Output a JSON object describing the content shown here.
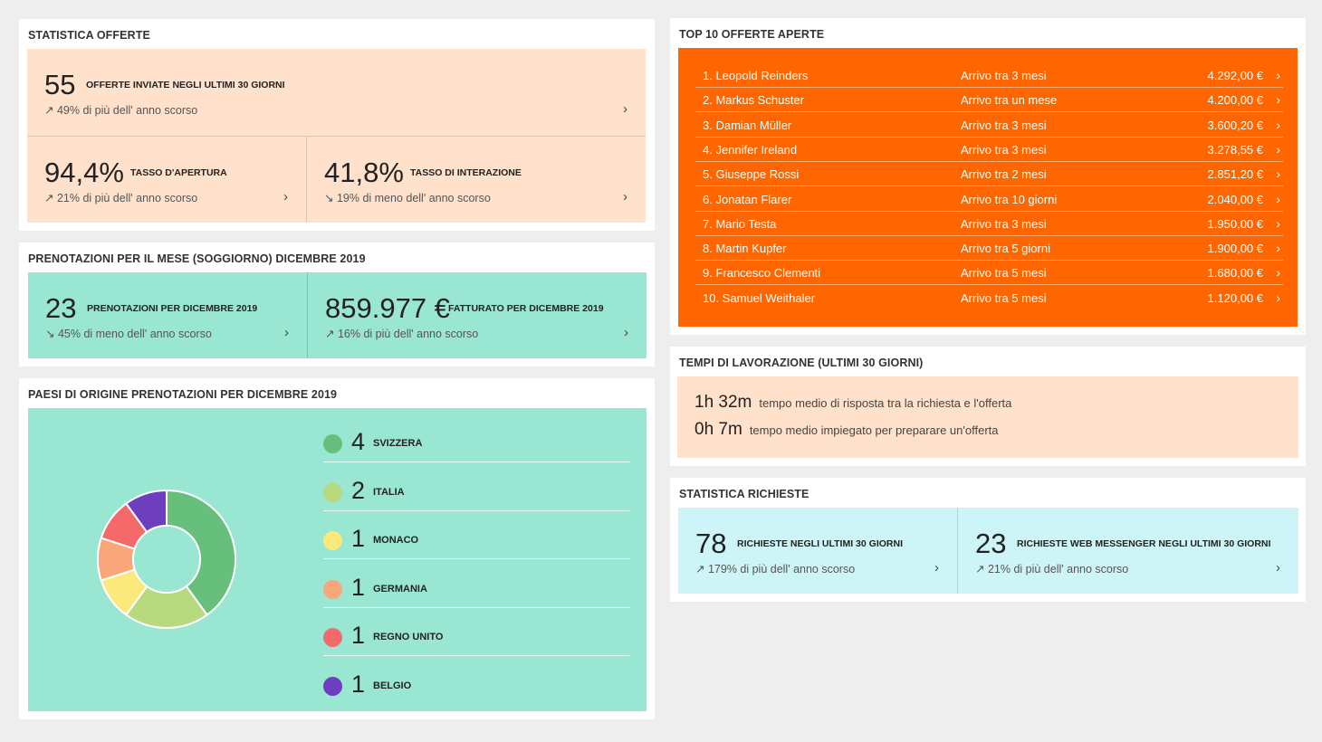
{
  "colors": {
    "peach": "#ffe1cc",
    "mint": "#99e6d3",
    "orange": "#ff6600",
    "lightblue": "#cdf5f7",
    "divider_peach": "#e8c3a8",
    "divider_mint": "#6fc9b4",
    "divider_blue": "#9fdce2"
  },
  "offerte": {
    "title": "STATISTICA OFFERTE",
    "main": {
      "value": "55",
      "label": "OFFERTE INVIATE NEGLI ULTIMI 30 GIORNI",
      "sub": "↗ 49% di più dell' anno scorso"
    },
    "left": {
      "value": "94,4%",
      "label": "TASSO D'APERTURA",
      "sub": "↗ 21% di più dell' anno scorso"
    },
    "right": {
      "value": "41,8%",
      "label": "TASSO DI INTERAZIONE",
      "sub": "↘ 19% di meno dell' anno scorso"
    }
  },
  "prenotazioni": {
    "title": "PRENOTAZIONI PER IL MESE (SOGGIORNO) DICEMBRE 2019",
    "left": {
      "value": "23",
      "label": "PRENOTAZIONI PER DICEMBRE 2019",
      "sub": "↘ 45% di meno dell' anno scorso"
    },
    "right": {
      "value": "859.977 €",
      "label": "FATTURATO PER DICEMBRE 2019",
      "sub": "↗ 16% di più dell' anno scorso"
    }
  },
  "paesi": {
    "title": "PAESI DI ORIGINE PRENOTAZIONI PER DICEMBRE 2019",
    "items": [
      {
        "count": "4",
        "country": "SVIZZERA",
        "color": "#66bf7a"
      },
      {
        "count": "2",
        "country": "ITALIA",
        "color": "#b8d97e"
      },
      {
        "count": "1",
        "country": "MONACO",
        "color": "#fbe97c"
      },
      {
        "count": "1",
        "country": "GERMANIA",
        "color": "#f9a77a"
      },
      {
        "count": "1",
        "country": "REGNO UNITO",
        "color": "#f46a6a"
      },
      {
        "count": "1",
        "country": "BELGIO",
        "color": "#6d3fbf"
      }
    ]
  },
  "chart_data": {
    "type": "pie",
    "title": "PAESI DI ORIGINE PRENOTAZIONI PER DICEMBRE 2019",
    "categories": [
      "SVIZZERA",
      "ITALIA",
      "MONACO",
      "GERMANIA",
      "REGNO UNITO",
      "BELGIO"
    ],
    "values": [
      4,
      2,
      1,
      1,
      1,
      1
    ],
    "colors": [
      "#66bf7a",
      "#b8d97e",
      "#fbe97c",
      "#f9a77a",
      "#f46a6a",
      "#6d3fbf"
    ],
    "donut": true
  },
  "top10": {
    "title": "TOP 10 OFFERTE APERTE",
    "rows": [
      {
        "name": "1. Leopold Reinders",
        "arrival": "Arrivo tra 3 mesi",
        "amount": "4.292,00 €"
      },
      {
        "name": "2. Markus Schuster",
        "arrival": "Arrivo tra un mese",
        "amount": "4.200,00 €"
      },
      {
        "name": "3. Damian Müller",
        "arrival": "Arrivo tra 3 mesi",
        "amount": "3.600,20 €"
      },
      {
        "name": "4. Jennifer Ireland",
        "arrival": "Arrivo tra 3 mesi",
        "amount": "3.278,55 €"
      },
      {
        "name": "5. Giuseppe Rossi",
        "arrival": "Arrivo tra 2 mesi",
        "amount": "2.851,20 €"
      },
      {
        "name": "6. Jonatan Flarer",
        "arrival": "Arrivo tra 10 giorni",
        "amount": "2.040,00 €"
      },
      {
        "name": "7. Mario Testa",
        "arrival": "Arrivo tra 3 mesi",
        "amount": "1.950,00 €"
      },
      {
        "name": "8. Martin Kupfer",
        "arrival": "Arrivo tra 5 giorni",
        "amount": "1.900,00 €"
      },
      {
        "name": "9. Francesco Clementi",
        "arrival": "Arrivo tra 5 mesi",
        "amount": "1.680,00 €"
      },
      {
        "name": "10. Samuel Weithaler",
        "arrival": "Arrivo tra 5 mesi",
        "amount": "1.120,00 €"
      }
    ]
  },
  "tempi": {
    "title": "TEMPI DI LAVORAZIONE (ULTIMI 30 GIORNI)",
    "rows": [
      {
        "value": "1h 32m",
        "text": "tempo medio di risposta tra la richiesta e l'offerta"
      },
      {
        "value": "0h 7m",
        "text": "tempo medio impiegato per preparare un'offerta"
      }
    ]
  },
  "richieste": {
    "title": "STATISTICA RICHIESTE",
    "left": {
      "value": "78",
      "label": "RICHIESTE NEGLI ULTIMI 30 GIORNI",
      "sub": "↗ 179% di più dell' anno scorso"
    },
    "right": {
      "value": "23",
      "label": "RICHIESTE WEB MESSENGER NEGLI ULTIMI 30 GIORNI",
      "sub": "↗ 21% di più dell' anno scorso"
    }
  },
  "chevron": "›"
}
